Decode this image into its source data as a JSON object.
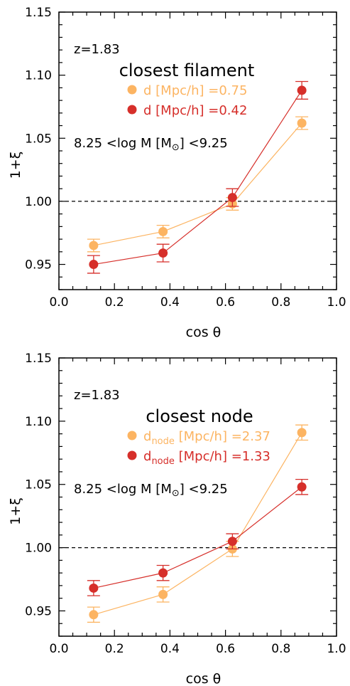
{
  "chart_data": [
    {
      "type": "line",
      "title": "closest filament",
      "redshift_label": "z=1.83",
      "mass_label": "8.25 <log M [M⊙] <9.25",
      "xlabel": "cos θ",
      "ylabel": "1+ξ",
      "xlim": [
        0.0,
        1.0
      ],
      "ylim": [
        0.93,
        1.15
      ],
      "xticks": [
        "0.0",
        "0.2",
        "0.4",
        "0.6",
        "0.8",
        "1.0"
      ],
      "yticks": [
        "0.95",
        "1.00",
        "1.05",
        "1.10",
        "1.15"
      ],
      "reference_line": 1.0,
      "legend_position": "upper-center",
      "series": [
        {
          "name": "d [Mpc/h] =0.75",
          "color": "#fcb462",
          "x": [
            0.125,
            0.375,
            0.625,
            0.875
          ],
          "y": [
            0.965,
            0.976,
            0.998,
            1.062
          ],
          "err": [
            0.005,
            0.005,
            0.005,
            0.005
          ]
        },
        {
          "name": "d [Mpc/h] =0.42",
          "color": "#d62f2a",
          "x": [
            0.125,
            0.375,
            0.625,
            0.875
          ],
          "y": [
            0.95,
            0.959,
            1.003,
            1.088
          ],
          "err": [
            0.007,
            0.007,
            0.007,
            0.007
          ]
        }
      ]
    },
    {
      "type": "line",
      "title": "closest node",
      "redshift_label": "z=1.83",
      "mass_label": "8.25 <log M [M⊙] <9.25",
      "xlabel": "cos θ",
      "ylabel": "1+ξ",
      "xlim": [
        0.0,
        1.0
      ],
      "ylim": [
        0.93,
        1.15
      ],
      "xticks": [
        "0.0",
        "0.2",
        "0.4",
        "0.6",
        "0.8",
        "1.0"
      ],
      "yticks": [
        "0.95",
        "1.00",
        "1.05",
        "1.10",
        "1.15"
      ],
      "reference_line": 1.0,
      "legend_position": "upper-center",
      "series": [
        {
          "name": "dnode [Mpc/h] =2.37",
          "name_parts": [
            "d",
            "node",
            " [Mpc/h] =2.37"
          ],
          "color": "#fcb462",
          "x": [
            0.125,
            0.375,
            0.625,
            0.875
          ],
          "y": [
            0.947,
            0.963,
            0.999,
            1.091
          ],
          "err": [
            0.006,
            0.006,
            0.006,
            0.006
          ]
        },
        {
          "name": "dnode [Mpc/h] =1.33",
          "name_parts": [
            "d",
            "node",
            " [Mpc/h] =1.33"
          ],
          "color": "#d62f2a",
          "x": [
            0.125,
            0.375,
            0.625,
            0.875
          ],
          "y": [
            0.968,
            0.98,
            1.005,
            1.048
          ],
          "err": [
            0.006,
            0.006,
            0.006,
            0.006
          ]
        }
      ]
    }
  ]
}
